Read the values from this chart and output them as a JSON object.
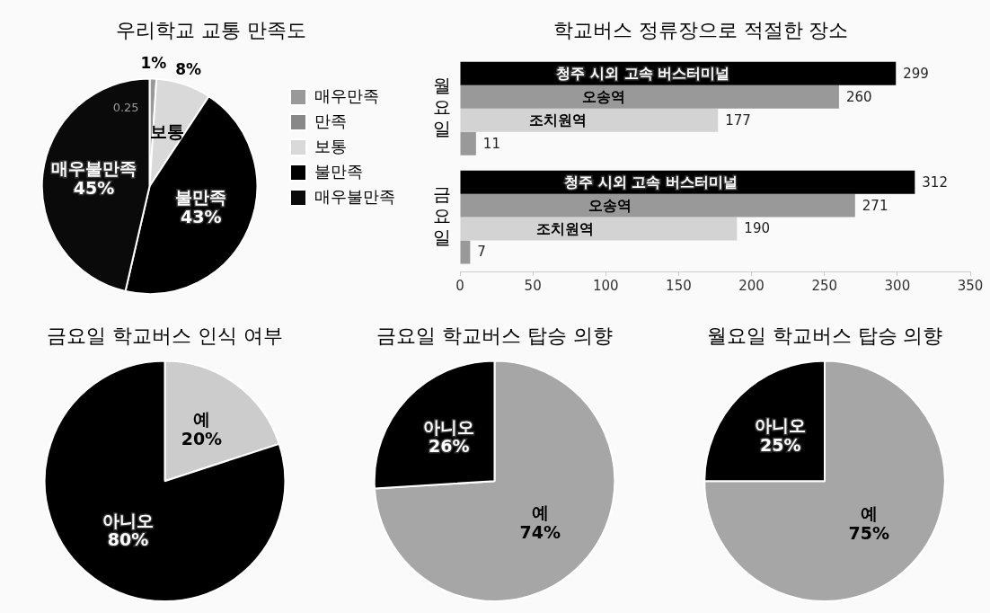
{
  "chart_data": [
    {
      "type": "pie",
      "title": "우리학교 교통 만족도",
      "categories": [
        "매우만족",
        "만족",
        "보통",
        "불만족",
        "매우불만족"
      ],
      "values": [
        1,
        0,
        8,
        43,
        45
      ],
      "colors": [
        "#999999",
        "#888888",
        "#d9d9d9",
        "#000000",
        "#0a0a0a"
      ],
      "value_labels": [
        "1%",
        null,
        "8%",
        "43%",
        "45%"
      ],
      "legend": "right",
      "annotations": [
        "0.25"
      ]
    },
    {
      "type": "bar",
      "orientation": "horizontal",
      "title": "학교버스 정류장으로 적절한 장소",
      "categories": [
        "월요일",
        "금요일"
      ],
      "series": [
        {
          "name": "청주 시외 고속 버스터미널",
          "color": "#000000",
          "values": [
            299,
            312
          ]
        },
        {
          "name": "오송역",
          "color": "#999999",
          "values": [
            260,
            271
          ]
        },
        {
          "name": "조치원역",
          "color": "#d3d3d3",
          "values": [
            177,
            190
          ]
        },
        {
          "color": "#999999",
          "values": [
            11,
            7
          ]
        }
      ],
      "xlim": [
        0,
        350
      ],
      "xticks": [
        0,
        50,
        100,
        150,
        200,
        250,
        300,
        350
      ],
      "data_labels": true
    },
    {
      "type": "pie",
      "title": "금요일 학교버스 인식 여부",
      "categories": [
        "예",
        "아니오"
      ],
      "values": [
        20,
        80
      ],
      "colors": [
        "#cccccc",
        "#000000"
      ],
      "value_labels": [
        "20%",
        "80%"
      ]
    },
    {
      "type": "pie",
      "title": "금요일 학교버스 탑승 의향",
      "categories": [
        "예",
        "아니오"
      ],
      "values": [
        74,
        26
      ],
      "colors": [
        "#a6a6a6",
        "#000000"
      ],
      "value_labels": [
        "74%",
        "26%"
      ]
    },
    {
      "type": "pie",
      "title": "월요일 학교버스 탑승 의향",
      "categories": [
        "예",
        "아니오"
      ],
      "values": [
        75,
        25
      ],
      "colors": [
        "#a6a6a6",
        "#000000"
      ],
      "value_labels": [
        "75%",
        "25%"
      ]
    }
  ]
}
